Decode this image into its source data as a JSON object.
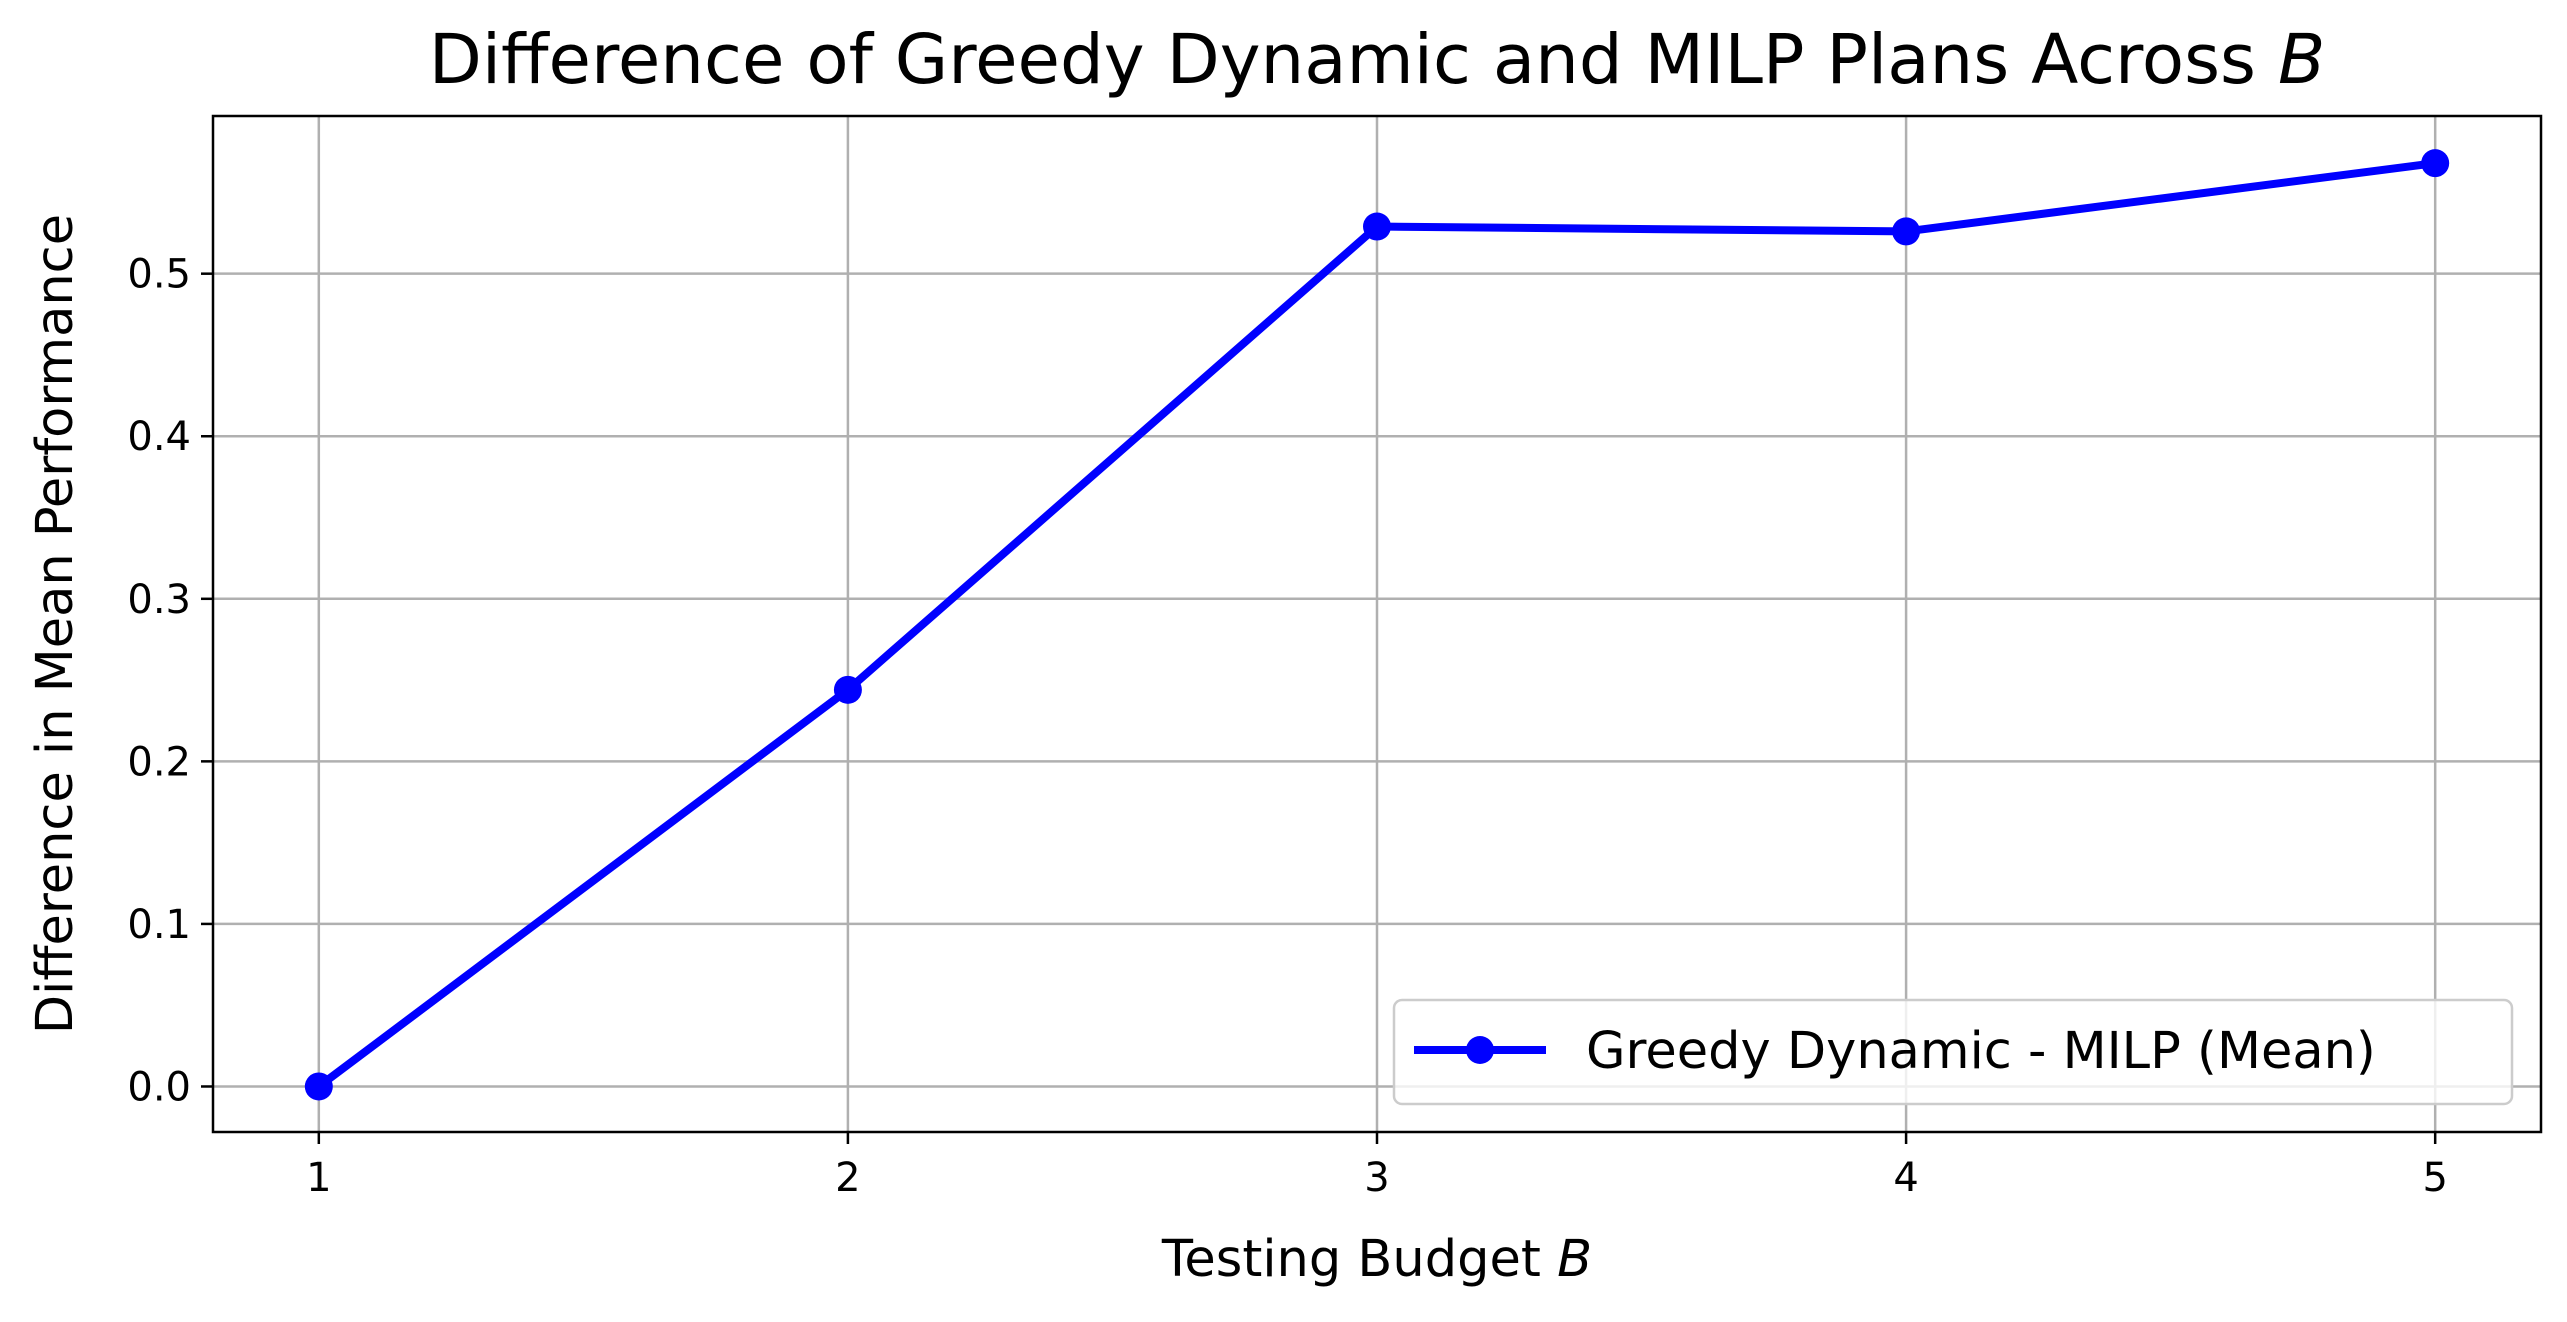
{
  "chart_data": {
    "type": "line",
    "title": {
      "main": "Difference of Greedy Dynamic and MILP Plans Across ",
      "italic": "B"
    },
    "xlabel": {
      "main": "Testing Budget ",
      "italic": "B"
    },
    "ylabel": "Difference in Mean Performance",
    "x": [
      1,
      2,
      3,
      4,
      5
    ],
    "xticks": [
      "1",
      "2",
      "3",
      "4",
      "5"
    ],
    "yticks": [
      "0.0",
      "0.1",
      "0.2",
      "0.3",
      "0.4",
      "0.5"
    ],
    "xlim": [
      0.8,
      5.2
    ],
    "ylim": [
      -0.028,
      0.597
    ],
    "grid": true,
    "legend_position": "lower right",
    "series": [
      {
        "name": "Greedy Dynamic - MILP (Mean)",
        "values": [
          0.0,
          0.244,
          0.529,
          0.526,
          0.568
        ],
        "color": "#0000ff",
        "marker": "circle"
      }
    ]
  }
}
